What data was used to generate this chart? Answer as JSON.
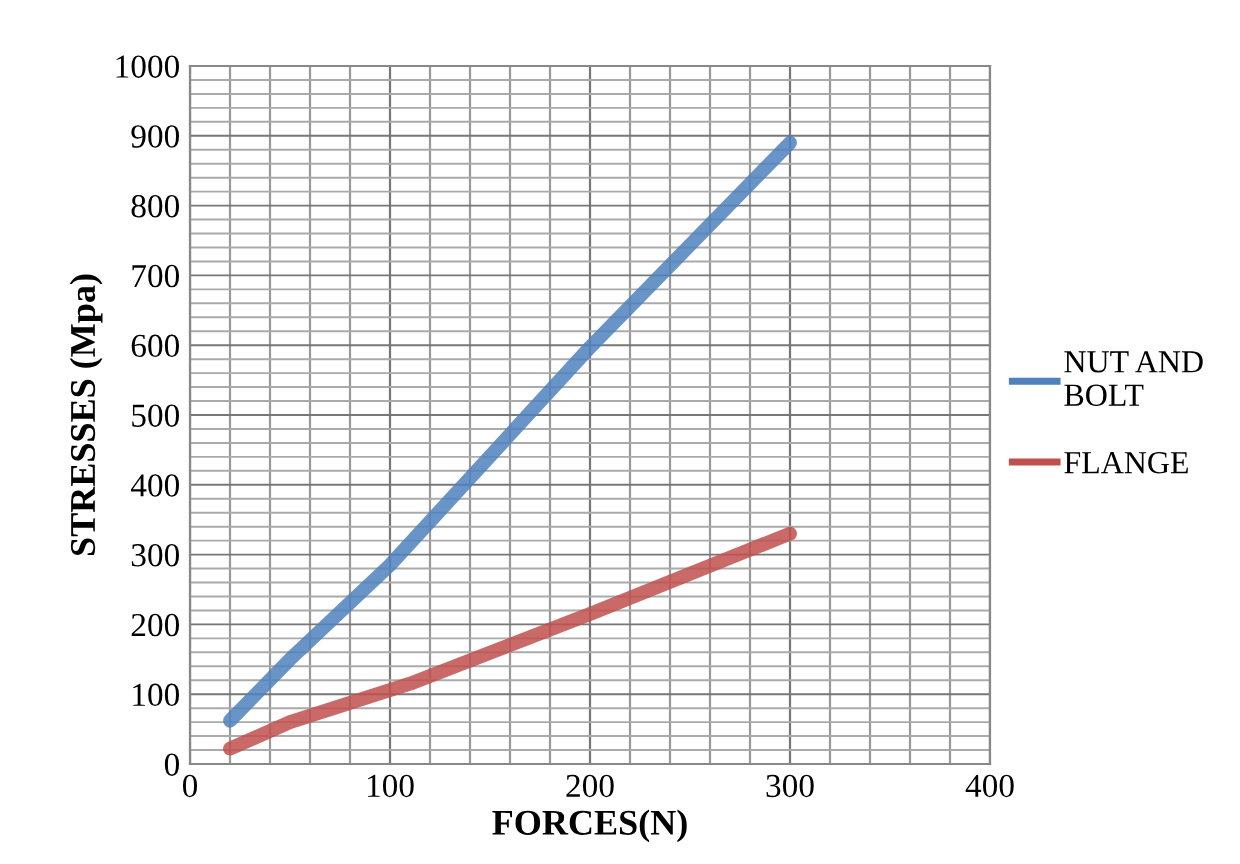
{
  "chart_data": {
    "type": "line",
    "xlabel": "FORCES(N)",
    "ylabel": "STRESSES (Mpa)",
    "xlim": [
      0,
      400
    ],
    "xticks": [
      0,
      100,
      200,
      300,
      400
    ],
    "ylim": [
      0,
      1000
    ],
    "yticks": [
      0,
      100,
      200,
      300,
      400,
      500,
      600,
      700,
      800,
      900,
      1000
    ],
    "grid": true,
    "legend": "right",
    "marker": "none",
    "line_style": "solid",
    "series": [
      {
        "name": "NUT AND\nBOLT",
        "color": "#4f81bd",
        "x": [
          20,
          50,
          100,
          200,
          300
        ],
        "values": [
          62,
          150,
          285,
          597,
          890
        ]
      },
      {
        "name": "FLANGE",
        "color": "#c0504d",
        "x": [
          20,
          50,
          110,
          200,
          300
        ],
        "values": [
          22,
          60,
          115,
          215,
          330
        ]
      }
    ]
  }
}
